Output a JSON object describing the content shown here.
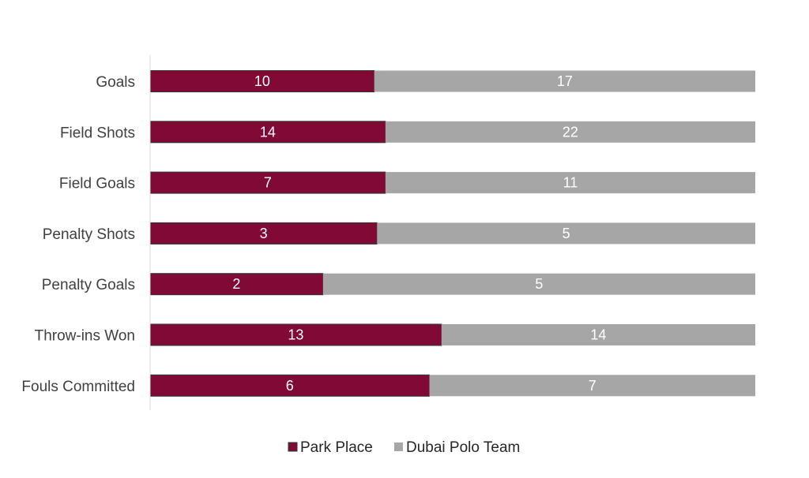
{
  "chart_data": {
    "type": "bar",
    "orientation": "horizontal",
    "stacking": "percent",
    "categories": [
      "Goals",
      "Field Shots",
      "Field Goals",
      "Penalty Shots",
      "Penalty Goals",
      "Throw-ins Won",
      "Fouls Committed"
    ],
    "series": [
      {
        "name": "Park Place",
        "values": [
          10,
          14,
          7,
          3,
          2,
          13,
          6
        ],
        "color": "#800935"
      },
      {
        "name": "Dubai Polo Team",
        "values": [
          17,
          22,
          11,
          5,
          5,
          14,
          7
        ],
        "color": "#a6a6a6"
      }
    ],
    "title": "",
    "xlabel": "",
    "ylabel": "",
    "xlim": [
      0,
      100
    ],
    "grid": false,
    "legend": "bottom",
    "data_labels": true
  }
}
